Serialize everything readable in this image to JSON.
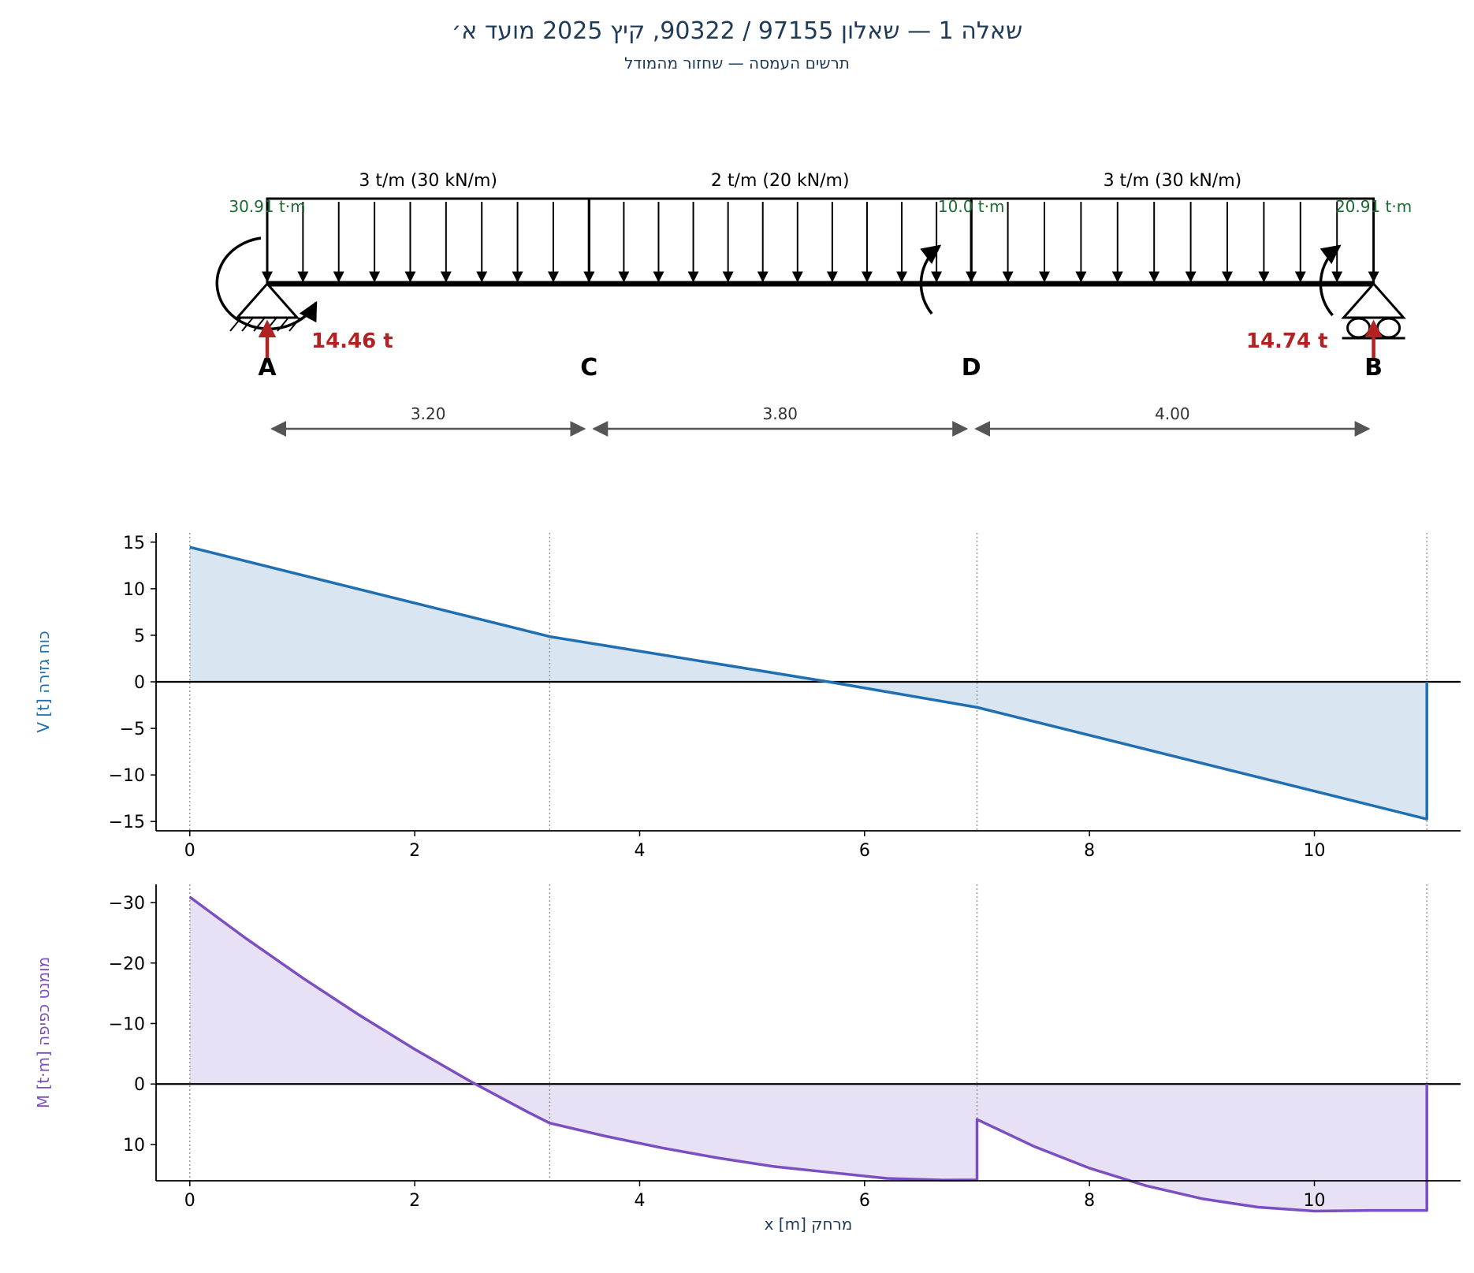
{
  "title": "שאלה 1 — שאלון 97155 / 90322, קיץ 2025 מועד א׳",
  "subtitle": "תרשים העמסה — שחזור מהמודל",
  "beam": {
    "points": [
      {
        "name": "A",
        "x": 0
      },
      {
        "name": "C",
        "x": 3.2
      },
      {
        "name": "D",
        "x": 7.0
      },
      {
        "name": "B",
        "x": 11.0
      }
    ],
    "loads": [
      {
        "from": 0,
        "to": 3.2,
        "label": "3 t/m  (30 kN/m)"
      },
      {
        "from": 3.2,
        "to": 7.0,
        "label": "2 t/m  (20 kN/m)"
      },
      {
        "from": 7.0,
        "to": 11.0,
        "label": "3 t/m  (30 kN/m)"
      }
    ],
    "moments": [
      {
        "x": 0,
        "label": "30.91 t·m"
      },
      {
        "x": 7.0,
        "label": "10.0 t·m"
      },
      {
        "x": 11.0,
        "label": "20.91 t·m"
      }
    ],
    "reactions": [
      {
        "x": 0,
        "label": "14.46 t"
      },
      {
        "x": 11.0,
        "label": "14.74 t"
      }
    ],
    "spans": [
      "3.20",
      "3.80",
      "4.00"
    ],
    "colors": {
      "moment": "#1a6b2e",
      "reaction": "#b22222",
      "dim": "#555555"
    }
  },
  "chart_data": [
    {
      "type": "line",
      "ylabel": "V [t]  כוח גזירה",
      "color": "#1f6fb2",
      "fill": "#d9e6f2",
      "xlim": [
        -0.3,
        11.3
      ],
      "ylim": [
        -16,
        16
      ],
      "xticks": [
        0,
        2,
        4,
        6,
        8,
        10
      ],
      "yticks": [
        15,
        10,
        5,
        0,
        -5,
        -10,
        -15
      ],
      "ytick_labels": [
        "15",
        "10",
        "5",
        "0",
        "−5",
        "−10",
        "−15"
      ],
      "x": [
        0,
        3.2,
        5.68,
        7.0,
        11.0,
        11.0
      ],
      "y": [
        14.46,
        4.86,
        0,
        -2.74,
        -14.74,
        0
      ],
      "vlines": [
        0,
        3.2,
        7.0,
        11.0
      ],
      "grid": false
    },
    {
      "type": "line",
      "ylabel": "M [t·m]  מומנט כפיפה",
      "color": "#7b4fbf",
      "fill": "#e8e0f4",
      "xlabel": "x [m]  מרחק",
      "xlim": [
        -0.3,
        11.3
      ],
      "ylim": [
        16,
        -33
      ],
      "inverted_y": true,
      "xticks": [
        0,
        2,
        4,
        6,
        8,
        10
      ],
      "yticks": [
        -30,
        -20,
        -10,
        0,
        10
      ],
      "ytick_labels": [
        "−30",
        "−20",
        "−10",
        "0",
        "10"
      ],
      "x": [
        0,
        0.5,
        1.0,
        1.5,
        2.0,
        2.5,
        3.0,
        3.2,
        3.7,
        4.2,
        4.7,
        5.2,
        5.68,
        6.2,
        6.7,
        7.0,
        7.0,
        7.5,
        8.0,
        8.5,
        9.0,
        9.27,
        9.5,
        10.0,
        10.5,
        11.0,
        11.0
      ],
      "y": [
        -30.91,
        -24.06,
        -17.58,
        -11.48,
        -5.75,
        -0.39,
        4.59,
        6.46,
        8.64,
        10.57,
        12.24,
        13.66,
        14.59,
        15.61,
        15.89,
        15.86,
        5.86,
        10.26,
        13.91,
        16.81,
        18.96,
        19.73,
        20.36,
        21.01,
        20.91,
        20.91,
        0
      ],
      "vlines": [
        0,
        3.2,
        7.0,
        11.0
      ],
      "grid": false
    }
  ]
}
